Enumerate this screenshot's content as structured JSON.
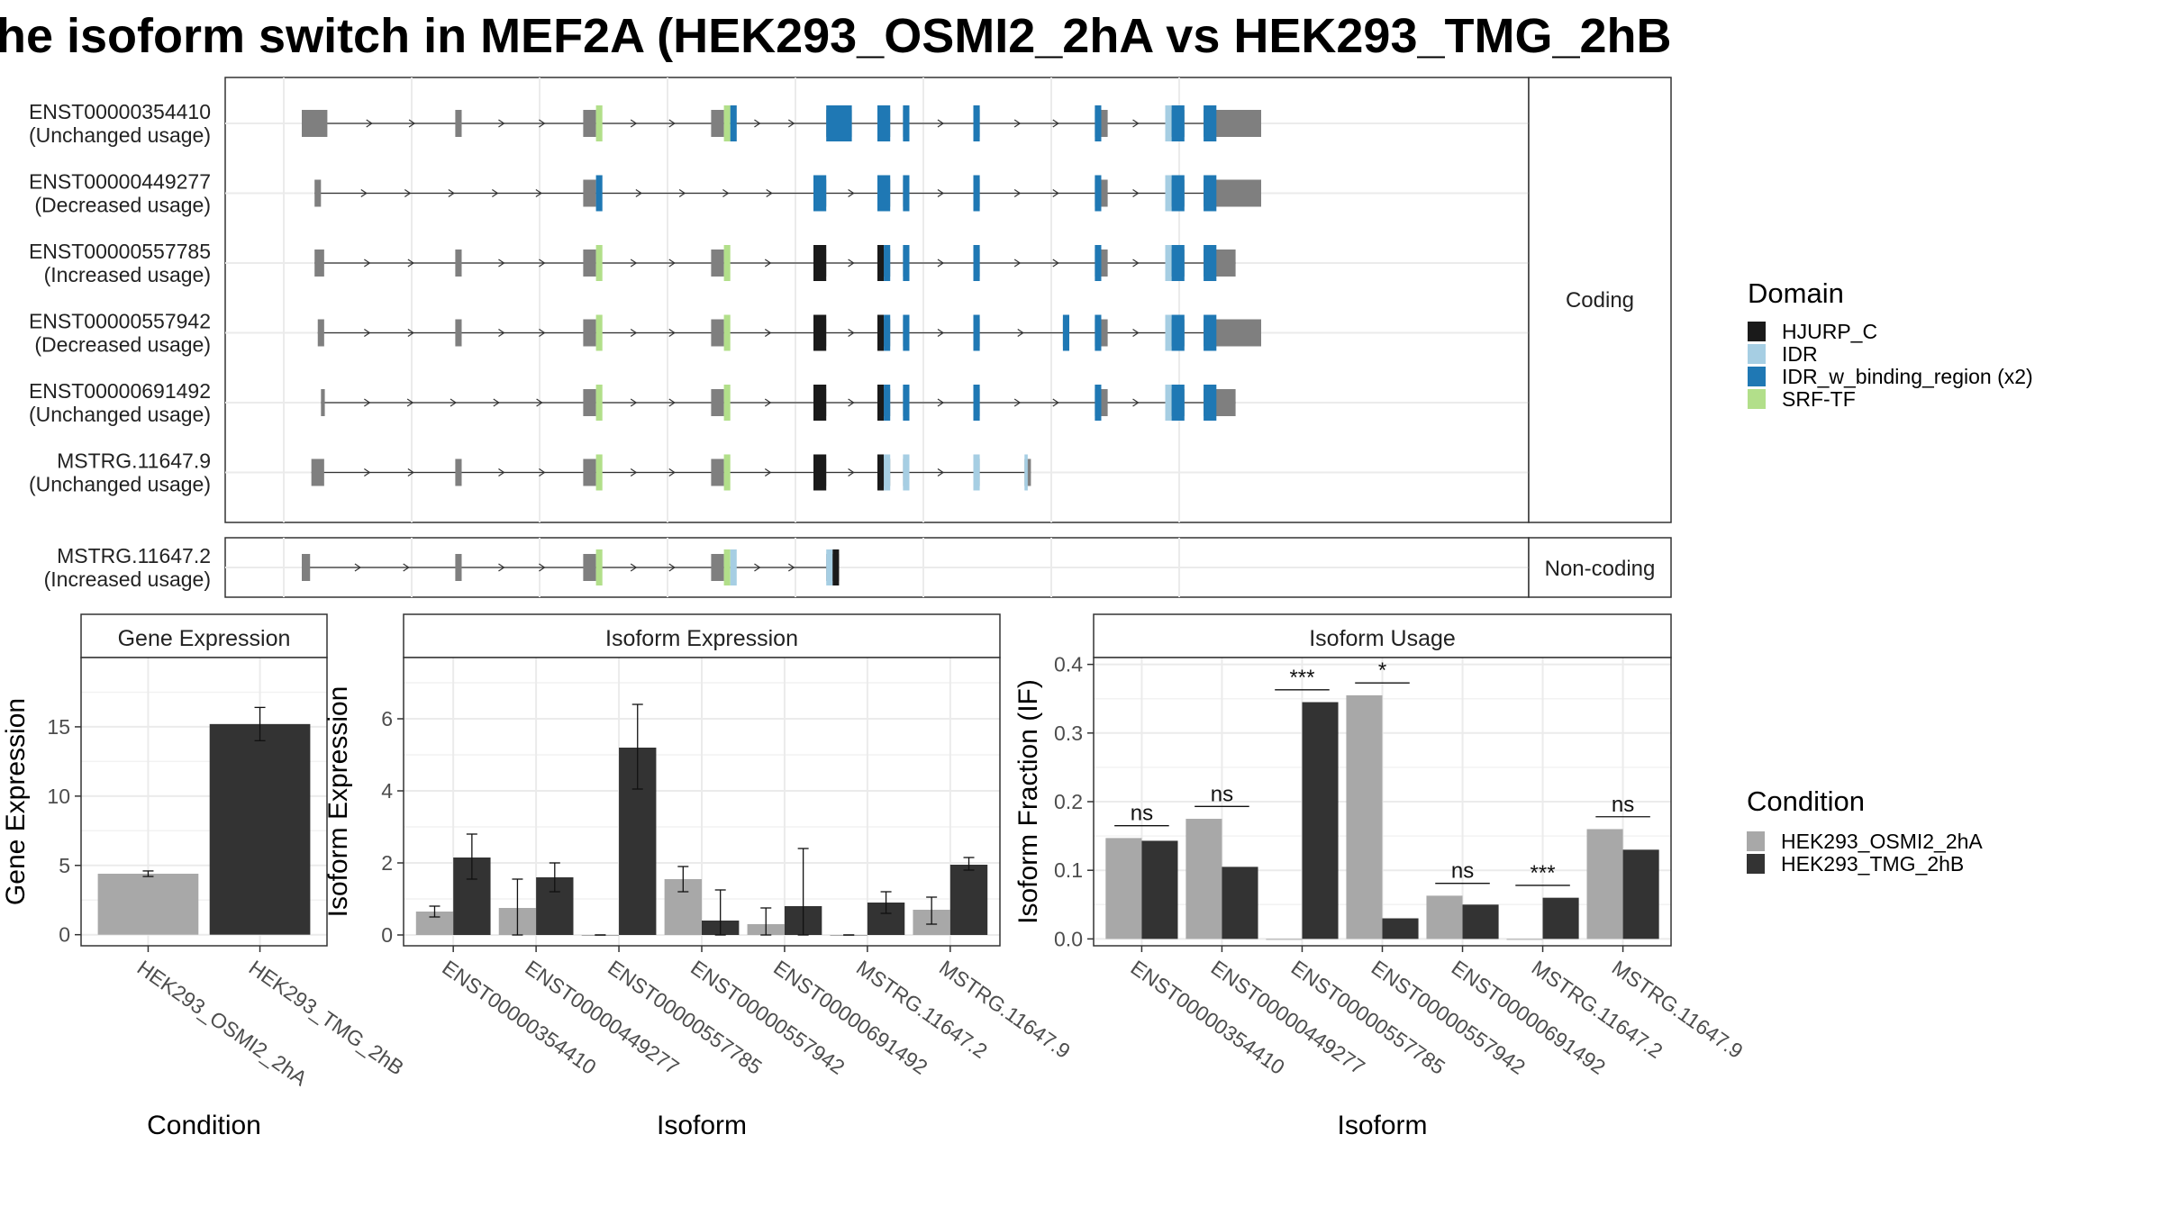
{
  "title": "he isoform switch in MEF2A (HEK293_OSMI2_2hA vs HEK293_TMG_2hB",
  "colors": {
    "condition_a": "#A8A8A8",
    "condition_b": "#333333",
    "exon": "#7F7F7F",
    "HJURP_C": "#1A1A1A",
    "IDR": "#A6CEE3",
    "IDR_w_binding_region": "#1F78B4",
    "SRF-TF": "#B2DF8A"
  },
  "legend_domain": {
    "title": "Domain",
    "items": [
      {
        "label": "HJURP_C",
        "color": "#1A1A1A"
      },
      {
        "label": "IDR",
        "color": "#A6CEE3"
      },
      {
        "label": "IDR_w_binding_region (x2)",
        "color": "#1F78B4"
      },
      {
        "label": "SRF-TF",
        "color": "#B2DF8A"
      }
    ]
  },
  "legend_condition": {
    "title": "Condition",
    "items": [
      {
        "label": "HEK293_OSMI2_2hA",
        "color": "#A8A8A8"
      },
      {
        "label": "HEK293_TMG_2hB",
        "color": "#333333"
      }
    ]
  },
  "structure": {
    "coding_label": "Coding",
    "noncoding_label": "Non-coding",
    "coding": [
      {
        "id": "ENST00000354410",
        "usage": "(Unchanged usage)",
        "exons": [
          [
            0,
            4
          ],
          [
            24,
            25
          ],
          [
            44,
            46
          ],
          [
            64,
            66
          ],
          [
            82,
            86
          ],
          [
            90,
            92
          ],
          [
            94,
            95
          ],
          [
            105,
            106
          ],
          [
            124,
            126
          ],
          [
            135,
            138
          ],
          [
            141,
            150
          ]
        ],
        "domains": [
          [
            46,
            47,
            "SRF-TF"
          ],
          [
            66,
            67,
            "SRF-TF"
          ],
          [
            67,
            68,
            "IDR_w_binding_region"
          ],
          [
            82,
            86,
            "IDR_w_binding_region"
          ],
          [
            90,
            92,
            "IDR_w_binding_region"
          ],
          [
            94,
            95,
            "IDR_w_binding_region"
          ],
          [
            105,
            106,
            "IDR_w_binding_region"
          ],
          [
            124,
            125,
            "IDR_w_binding_region"
          ],
          [
            135,
            136,
            "IDR"
          ],
          [
            136,
            138,
            "IDR_w_binding_region"
          ],
          [
            141,
            143,
            "IDR_w_binding_region"
          ]
        ]
      },
      {
        "id": "ENST00000449277",
        "usage": "(Decreased usage)",
        "exons": [
          [
            2,
            3
          ],
          [
            44,
            46
          ],
          [
            80,
            82
          ],
          [
            90,
            92
          ],
          [
            94,
            95
          ],
          [
            105,
            106
          ],
          [
            124,
            126
          ],
          [
            135,
            138
          ],
          [
            141,
            150
          ]
        ],
        "domains": [
          [
            46,
            47,
            "IDR_w_binding_region"
          ],
          [
            80,
            82,
            "IDR_w_binding_region"
          ],
          [
            90,
            92,
            "IDR_w_binding_region"
          ],
          [
            94,
            95,
            "IDR_w_binding_region"
          ],
          [
            105,
            106,
            "IDR_w_binding_region"
          ],
          [
            124,
            125,
            "IDR_w_binding_region"
          ],
          [
            135,
            136,
            "IDR"
          ],
          [
            136,
            138,
            "IDR_w_binding_region"
          ],
          [
            141,
            143,
            "IDR_w_binding_region"
          ]
        ]
      },
      {
        "id": "ENST00000557785",
        "usage": "(Increased usage)",
        "exons": [
          [
            2,
            3.5
          ],
          [
            24,
            25
          ],
          [
            44,
            46
          ],
          [
            64,
            66
          ],
          [
            80,
            82
          ],
          [
            90,
            92
          ],
          [
            94,
            95
          ],
          [
            105,
            106
          ],
          [
            124,
            126
          ],
          [
            135,
            138
          ],
          [
            141,
            146
          ]
        ],
        "domains": [
          [
            46,
            47,
            "SRF-TF"
          ],
          [
            66,
            67,
            "SRF-TF"
          ],
          [
            80,
            82,
            "HJURP_C"
          ],
          [
            90,
            91,
            "HJURP_C"
          ],
          [
            91,
            92,
            "IDR_w_binding_region"
          ],
          [
            94,
            95,
            "IDR_w_binding_region"
          ],
          [
            105,
            106,
            "IDR_w_binding_region"
          ],
          [
            124,
            125,
            "IDR_w_binding_region"
          ],
          [
            135,
            136,
            "IDR"
          ],
          [
            136,
            138,
            "IDR_w_binding_region"
          ],
          [
            141,
            143,
            "IDR_w_binding_region"
          ]
        ]
      },
      {
        "id": "ENST00000557942",
        "usage": "(Decreased usage)",
        "exons": [
          [
            2.5,
            3.5
          ],
          [
            24,
            25
          ],
          [
            44,
            46
          ],
          [
            64,
            66
          ],
          [
            80,
            82
          ],
          [
            90,
            92
          ],
          [
            94,
            95
          ],
          [
            105,
            106
          ],
          [
            119,
            120
          ],
          [
            124,
            126
          ],
          [
            135,
            138
          ],
          [
            141,
            150
          ]
        ],
        "domains": [
          [
            46,
            47,
            "SRF-TF"
          ],
          [
            66,
            67,
            "SRF-TF"
          ],
          [
            80,
            82,
            "HJURP_C"
          ],
          [
            90,
            91,
            "HJURP_C"
          ],
          [
            91,
            92,
            "IDR_w_binding_region"
          ],
          [
            94,
            95,
            "IDR_w_binding_region"
          ],
          [
            105,
            106,
            "IDR_w_binding_region"
          ],
          [
            119,
            120,
            "IDR_w_binding_region"
          ],
          [
            124,
            125,
            "IDR_w_binding_region"
          ],
          [
            135,
            136,
            "IDR"
          ],
          [
            136,
            138,
            "IDR_w_binding_region"
          ],
          [
            141,
            143,
            "IDR_w_binding_region"
          ]
        ]
      },
      {
        "id": "ENST00000691492",
        "usage": "(Unchanged usage)",
        "exons": [
          [
            3,
            3.6
          ],
          [
            44,
            46
          ],
          [
            64,
            66
          ],
          [
            80,
            82
          ],
          [
            90,
            92
          ],
          [
            94,
            95
          ],
          [
            105,
            106
          ],
          [
            124,
            126
          ],
          [
            135,
            138
          ],
          [
            141,
            146
          ]
        ],
        "domains": [
          [
            46,
            47,
            "SRF-TF"
          ],
          [
            66,
            67,
            "SRF-TF"
          ],
          [
            80,
            82,
            "HJURP_C"
          ],
          [
            90,
            91,
            "HJURP_C"
          ],
          [
            91,
            92,
            "IDR_w_binding_region"
          ],
          [
            94,
            95,
            "IDR_w_binding_region"
          ],
          [
            105,
            106,
            "IDR_w_binding_region"
          ],
          [
            124,
            125,
            "IDR_w_binding_region"
          ],
          [
            135,
            136,
            "IDR"
          ],
          [
            136,
            138,
            "IDR_w_binding_region"
          ],
          [
            141,
            143,
            "IDR_w_binding_region"
          ]
        ]
      },
      {
        "id": "MSTRG.11647.9",
        "usage": "(Unchanged usage)",
        "exons": [
          [
            1.5,
            3.5
          ],
          [
            24,
            25
          ],
          [
            44,
            46
          ],
          [
            64,
            66
          ],
          [
            80,
            82
          ],
          [
            90,
            92
          ],
          [
            94,
            95
          ],
          [
            105,
            106
          ],
          [
            113,
            114
          ]
        ],
        "domains": [
          [
            46,
            47,
            "SRF-TF"
          ],
          [
            66,
            67,
            "SRF-TF"
          ],
          [
            80,
            82,
            "HJURP_C"
          ],
          [
            90,
            91,
            "HJURP_C"
          ],
          [
            91,
            92,
            "IDR"
          ],
          [
            94,
            95,
            "IDR"
          ],
          [
            105,
            106,
            "IDR"
          ],
          [
            113,
            113.5,
            "IDR"
          ]
        ]
      }
    ],
    "noncoding": [
      {
        "id": "MSTRG.11647.2",
        "usage": "(Increased usage)",
        "exons": [
          [
            0,
            1.3
          ],
          [
            24,
            25
          ],
          [
            44,
            46
          ],
          [
            64,
            66
          ],
          [
            82,
            84
          ]
        ],
        "domains": [
          [
            46,
            47,
            "SRF-TF"
          ],
          [
            66,
            67,
            "SRF-TF"
          ],
          [
            67,
            68,
            "IDR"
          ],
          [
            82,
            83,
            "IDR"
          ],
          [
            83,
            84,
            "HJURP_C"
          ]
        ]
      }
    ]
  },
  "chart_data": [
    {
      "type": "bar",
      "title": "Gene Expression",
      "xlabel": "Condition",
      "ylabel": "Gene Expression",
      "ylim": [
        -0.8,
        20
      ],
      "yticks": [
        0,
        5,
        10,
        15
      ],
      "grid": true,
      "categories": [
        "HEK293_OSMI2_2hA",
        "HEK293_TMG_2hB"
      ],
      "series": [
        {
          "name": "HEK293_OSMI2_2hA",
          "values": [
            4.4,
            null
          ],
          "err_low": [
            4.2,
            null
          ],
          "err_high": [
            4.6,
            null
          ]
        },
        {
          "name": "HEK293_TMG_2hB",
          "values": [
            null,
            15.2
          ],
          "err_low": [
            null,
            14.0
          ],
          "err_high": [
            null,
            16.4
          ]
        }
      ]
    },
    {
      "type": "bar",
      "title": "Isoform Expression",
      "xlabel": "Isoform",
      "ylabel": "Isoform Expression",
      "ylim": [
        -0.3,
        7.7
      ],
      "yticks": [
        0,
        2,
        4,
        6
      ],
      "grid": true,
      "categories": [
        "ENST00000354410",
        "ENST00000449277",
        "ENST00000557785",
        "ENST00000557942",
        "ENST00000691492",
        "MSTRG.11647.2",
        "MSTRG.11647.9"
      ],
      "series": [
        {
          "name": "HEK293_OSMI2_2hA",
          "values": [
            0.65,
            0.75,
            0.0,
            1.55,
            0.3,
            0.0,
            0.7
          ],
          "err_low": [
            0.5,
            0.0,
            0.0,
            1.2,
            0.0,
            0.0,
            0.3
          ],
          "err_high": [
            0.8,
            1.55,
            0.0,
            1.9,
            0.75,
            0.0,
            1.05
          ]
        },
        {
          "name": "HEK293_TMG_2hB",
          "values": [
            2.15,
            1.6,
            5.2,
            0.4,
            0.8,
            0.9,
            1.95
          ],
          "err_low": [
            1.55,
            1.2,
            4.05,
            0.0,
            0.0,
            0.6,
            1.8
          ],
          "err_high": [
            2.8,
            2.0,
            6.4,
            1.25,
            2.4,
            1.2,
            2.15
          ]
        }
      ]
    },
    {
      "type": "bar",
      "title": "Isoform Usage",
      "xlabel": "Isoform",
      "ylabel": "Isoform Fraction (IF)",
      "ylim": [
        -0.01,
        0.41
      ],
      "yticks": [
        0.0,
        0.1,
        0.2,
        0.3,
        0.4
      ],
      "grid": true,
      "categories": [
        "ENST00000354410",
        "ENST00000449277",
        "ENST00000557785",
        "ENST00000557942",
        "ENST00000691492",
        "MSTRG.11647.2",
        "MSTRG.11647.9"
      ],
      "series": [
        {
          "name": "HEK293_OSMI2_2hA",
          "values": [
            0.147,
            0.175,
            0.0,
            0.355,
            0.063,
            0.0,
            0.16
          ]
        },
        {
          "name": "HEK293_TMG_2hB",
          "values": [
            0.143,
            0.105,
            0.345,
            0.03,
            0.05,
            0.06,
            0.13
          ]
        }
      ],
      "annotations": [
        {
          "category": "ENST00000354410",
          "label": "ns",
          "y": 0.165
        },
        {
          "category": "ENST00000449277",
          "label": "ns",
          "y": 0.193
        },
        {
          "category": "ENST00000557785",
          "label": "***",
          "y": 0.363
        },
        {
          "category": "ENST00000557942",
          "label": "*",
          "y": 0.373
        },
        {
          "category": "ENST00000691492",
          "label": "ns",
          "y": 0.081
        },
        {
          "category": "MSTRG.11647.2",
          "label": "***",
          "y": 0.078
        },
        {
          "category": "MSTRG.11647.9",
          "label": "ns",
          "y": 0.178
        }
      ]
    }
  ]
}
